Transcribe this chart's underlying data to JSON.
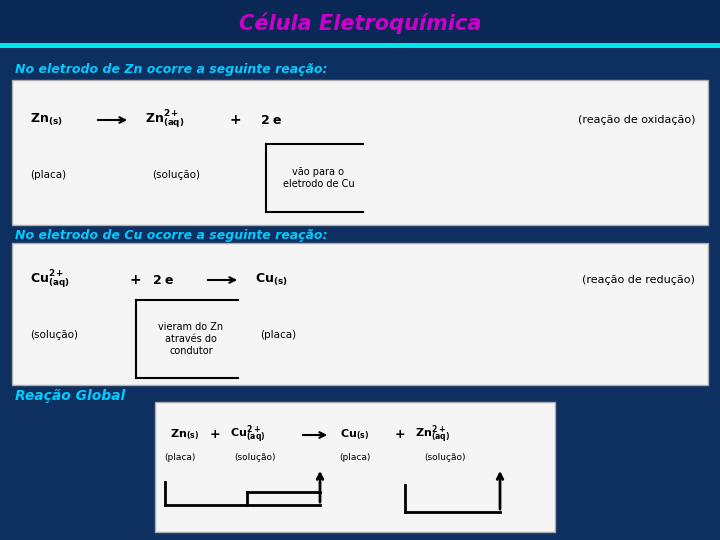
{
  "title": "Célula Eletroquímica",
  "title_color": "#CC00CC",
  "bg_color_top": "#0a2a4a",
  "bg_color": "#0d3060",
  "box_color": "#f5f5f5",
  "box_edge": "#cccccc",
  "section1_label": "No eletrodo de Zn ocorre a seguinte reação:",
  "section2_label": "No eletrodo de Cu ocorre a seguinte reação:",
  "section3_label": "Reação Global",
  "section_color": "#00ccff",
  "title_fontsize": 15,
  "section_fontsize": 9,
  "reaction_fontsize": 9,
  "note_fontsize": 8,
  "sub_fontsize": 7.5,
  "bracket_fontsize": 7
}
